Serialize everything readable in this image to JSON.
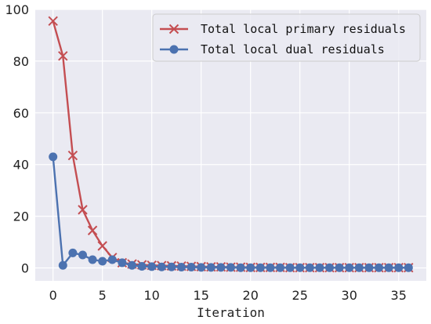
{
  "chart_data": {
    "type": "line",
    "title": "",
    "xlabel": "Iteration",
    "ylabel": "",
    "xlim": [
      -1.8,
      37.8
    ],
    "ylim": [
      -5,
      100
    ],
    "xticks": [
      0,
      5,
      10,
      15,
      20,
      25,
      30,
      35
    ],
    "yticks": [
      0,
      20,
      40,
      60,
      80,
      100
    ],
    "grid": true,
    "legend_position": "top-right",
    "background_color": "#eaeaf2",
    "series": [
      {
        "name": "Total local primary residuals",
        "marker": "x",
        "color": "#c44e52",
        "x": [
          0,
          1,
          2,
          3,
          4,
          5,
          6,
          7,
          8,
          9,
          10,
          11,
          12,
          13,
          14,
          15,
          16,
          17,
          18,
          19,
          20,
          21,
          22,
          23,
          24,
          25,
          26,
          27,
          28,
          29,
          30,
          31,
          32,
          33,
          34,
          35,
          36
        ],
        "values": [
          95.5,
          82,
          43.5,
          22.5,
          14.5,
          8.5,
          4,
          2,
          1.5,
          1.2,
          1,
          0.9,
          0.8,
          0.7,
          0.6,
          0.5,
          0.4,
          0.4,
          0.3,
          0.3,
          0.2,
          0.2,
          0.2,
          0.2,
          0.1,
          0.1,
          0.1,
          0.1,
          0.1,
          0.1,
          0.1,
          0.1,
          0.1,
          0.1,
          0.1,
          0.1,
          0.1
        ]
      },
      {
        "name": "Total local dual residuals",
        "marker": "o",
        "color": "#4c72b0",
        "x": [
          0,
          1,
          2,
          3,
          4,
          5,
          6,
          7,
          8,
          9,
          10,
          11,
          12,
          13,
          14,
          15,
          16,
          17,
          18,
          19,
          20,
          21,
          22,
          23,
          24,
          25,
          26,
          27,
          28,
          29,
          30,
          31,
          32,
          33,
          34,
          35,
          36
        ],
        "values": [
          43,
          1,
          5.8,
          5,
          3.2,
          2.6,
          3.2,
          2,
          1,
          0.6,
          0.5,
          0.4,
          0.4,
          0.3,
          0.3,
          0.2,
          0.2,
          0.2,
          0.2,
          0.1,
          0.1,
          0.1,
          0.1,
          0.1,
          0.1,
          0.1,
          0.1,
          0.1,
          0.1,
          0.1,
          0.1,
          0.1,
          0.1,
          0.1,
          0.1,
          0.1,
          0.1
        ]
      }
    ]
  }
}
